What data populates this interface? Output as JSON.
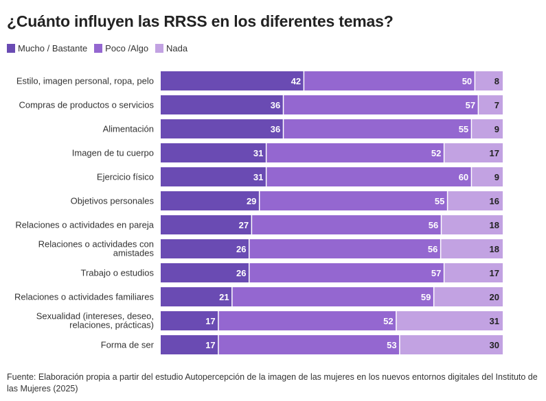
{
  "chart_data": {
    "type": "bar",
    "stacked": true,
    "orientation": "horizontal",
    "percent_stacked": true,
    "title": "¿Cuánto influyen las RRSS en los diferentes temas?",
    "categories": [
      "Estilo, imagen personal, ropa, pelo",
      "Compras de productos o servicios",
      "Alimentación",
      "Imagen de tu cuerpo",
      "Ejercicio físico",
      "Objetivos personales",
      "Relaciones o actividades en pareja",
      "Relaciones o actividades con amistades",
      "Trabajo o estudios",
      "Relaciones o actividades familiares",
      "Sexualidad (intereses, deseo, relaciones, prácticas)",
      "Forma de ser"
    ],
    "category_lines": [
      [
        "Estilo, imagen personal, ropa, pelo"
      ],
      [
        "Compras de productos o servicios"
      ],
      [
        "Alimentación"
      ],
      [
        "Imagen de tu cuerpo"
      ],
      [
        "Ejercicio físico"
      ],
      [
        "Objetivos personales"
      ],
      [
        "Relaciones o actividades en pareja"
      ],
      [
        "Relaciones o actividades con",
        "amistades"
      ],
      [
        "Trabajo o estudios"
      ],
      [
        "Relaciones o actividades familiares"
      ],
      [
        "Sexualidad (intereses, deseo,",
        "relaciones, prácticas)"
      ],
      [
        "Forma de ser"
      ]
    ],
    "series": [
      {
        "name": "Mucho / Bastante",
        "color": "#6a4bb3",
        "values": [
          42,
          36,
          36,
          31,
          31,
          29,
          27,
          26,
          26,
          21,
          17,
          17
        ]
      },
      {
        "name": "Poco /Algo",
        "color": "#9467d0",
        "values": [
          50,
          57,
          55,
          52,
          60,
          55,
          56,
          56,
          57,
          59,
          52,
          53
        ]
      },
      {
        "name": "Nada",
        "color": "#c2a2e2",
        "values": [
          8,
          7,
          9,
          17,
          9,
          16,
          18,
          18,
          17,
          20,
          31,
          30
        ]
      }
    ]
  },
  "source_text": "Fuente: Elaboración propia a partir del estudio Autopercepción de la imagen de las mujeres en los nuevos entornos digitales del Instituto de las Mujeres (2025)"
}
